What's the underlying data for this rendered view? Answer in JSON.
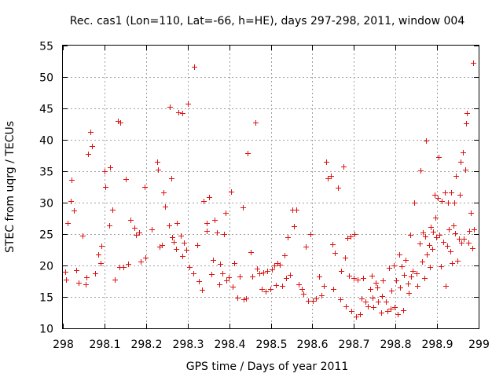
{
  "chart_data": {
    "type": "scatter",
    "title": "Rec. cas1 (Lon=110, Lat=-66, h=HE), days 297-298, 2011, window 004",
    "xlabel": "GPS time / Days of year 2011",
    "ylabel": "STEC from uqrg / TECUs",
    "xlim": [
      298,
      299
    ],
    "ylim": [
      10,
      55
    ],
    "xticks": [
      "298",
      "298.1",
      "298.2",
      "298.3",
      "298.4",
      "298.5",
      "298.6",
      "298.7",
      "298.8",
      "298.9",
      "299"
    ],
    "yticks": [
      "10",
      "15",
      "20",
      "25",
      "30",
      "35",
      "40",
      "45",
      "50",
      "55"
    ],
    "grid": true,
    "marker": "plus",
    "color": "#dd1111",
    "series": [
      {
        "name": "STEC",
        "points": [
          [
            298.005,
            19.0
          ],
          [
            298.008,
            17.8
          ],
          [
            298.012,
            26.8
          ],
          [
            298.018,
            30.2
          ],
          [
            298.02,
            33.6
          ],
          [
            298.026,
            28.7
          ],
          [
            298.033,
            19.2
          ],
          [
            298.037,
            17.3
          ],
          [
            298.048,
            24.7
          ],
          [
            298.055,
            17.0
          ],
          [
            298.057,
            18.1
          ],
          [
            298.06,
            37.8
          ],
          [
            298.066,
            41.3
          ],
          [
            298.07,
            39.0
          ],
          [
            298.078,
            18.8
          ],
          [
            298.085,
            21.8
          ],
          [
            298.09,
            20.4
          ],
          [
            298.093,
            23.1
          ],
          [
            298.101,
            35.0
          ],
          [
            298.103,
            32.5
          ],
          [
            298.112,
            26.4
          ],
          [
            298.114,
            35.6
          ],
          [
            298.12,
            28.9
          ],
          [
            298.124,
            17.7
          ],
          [
            298.133,
            43.0
          ],
          [
            298.136,
            19.7
          ],
          [
            298.138,
            42.8
          ],
          [
            298.146,
            19.8
          ],
          [
            298.151,
            33.8
          ],
          [
            298.156,
            20.3
          ],
          [
            298.163,
            27.2
          ],
          [
            298.172,
            26.0
          ],
          [
            298.176,
            24.9
          ],
          [
            298.183,
            25.3
          ],
          [
            298.188,
            20.6
          ],
          [
            298.196,
            32.5
          ],
          [
            298.199,
            21.3
          ],
          [
            298.213,
            25.7
          ],
          [
            298.226,
            36.5
          ],
          [
            298.229,
            35.2
          ],
          [
            298.233,
            23.0
          ],
          [
            298.238,
            23.2
          ],
          [
            298.242,
            31.6
          ],
          [
            298.245,
            29.4
          ],
          [
            298.256,
            26.4
          ],
          [
            298.258,
            45.2
          ],
          [
            298.261,
            33.9
          ],
          [
            298.262,
            24.5
          ],
          [
            298.267,
            23.7
          ],
          [
            298.272,
            22.6
          ],
          [
            298.275,
            26.8
          ],
          [
            298.278,
            44.4
          ],
          [
            298.283,
            24.8
          ],
          [
            298.287,
            21.5
          ],
          [
            298.288,
            44.3
          ],
          [
            298.292,
            23.6
          ],
          [
            298.296,
            22.5
          ],
          [
            298.301,
            45.8
          ],
          [
            298.305,
            19.8
          ],
          [
            298.313,
            18.8
          ],
          [
            298.316,
            51.6
          ],
          [
            298.323,
            23.3
          ],
          [
            298.327,
            17.5
          ],
          [
            298.335,
            16.1
          ],
          [
            298.339,
            30.3
          ],
          [
            298.345,
            26.8
          ],
          [
            298.346,
            25.5
          ],
          [
            298.352,
            30.9
          ],
          [
            298.357,
            18.6
          ],
          [
            298.362,
            20.9
          ],
          [
            298.365,
            27.3
          ],
          [
            298.37,
            25.2
          ],
          [
            298.376,
            17.0
          ],
          [
            298.379,
            20.2
          ],
          [
            298.383,
            18.8
          ],
          [
            298.387,
            25.0
          ],
          [
            298.392,
            28.4
          ],
          [
            298.394,
            17.6
          ],
          [
            298.399,
            18.1
          ],
          [
            298.405,
            31.8
          ],
          [
            298.409,
            16.6
          ],
          [
            298.413,
            20.4
          ],
          [
            298.419,
            14.9
          ],
          [
            298.425,
            18.2
          ],
          [
            298.432,
            29.2
          ],
          [
            298.435,
            14.6
          ],
          [
            298.441,
            14.7
          ],
          [
            298.445,
            37.9
          ],
          [
            298.451,
            22.1
          ],
          [
            298.456,
            18.2
          ],
          [
            298.463,
            42.7
          ],
          [
            298.467,
            19.5
          ],
          [
            298.472,
            18.7
          ],
          [
            298.478,
            16.2
          ],
          [
            298.482,
            18.9
          ],
          [
            298.487,
            15.9
          ],
          [
            298.492,
            19.1
          ],
          [
            298.499,
            16.3
          ],
          [
            298.503,
            19.4
          ],
          [
            298.508,
            20.0
          ],
          [
            298.512,
            16.9
          ],
          [
            298.517,
            20.4
          ],
          [
            298.521,
            20.1
          ],
          [
            298.527,
            16.8
          ],
          [
            298.533,
            21.6
          ],
          [
            298.536,
            18.0
          ],
          [
            298.541,
            24.5
          ],
          [
            298.547,
            18.5
          ],
          [
            298.552,
            28.9
          ],
          [
            298.556,
            26.2
          ],
          [
            298.562,
            28.9
          ],
          [
            298.567,
            17.0
          ],
          [
            298.575,
            16.2
          ],
          [
            298.578,
            15.5
          ],
          [
            298.584,
            23.0
          ],
          [
            298.589,
            14.4
          ],
          [
            298.596,
            25.0
          ],
          [
            298.601,
            14.4
          ],
          [
            298.608,
            14.8
          ],
          [
            298.617,
            18.2
          ],
          [
            298.622,
            15.2
          ],
          [
            298.627,
            16.7
          ],
          [
            298.633,
            36.5
          ],
          [
            298.637,
            33.9
          ],
          [
            298.645,
            34.3
          ],
          [
            298.648,
            23.4
          ],
          [
            298.651,
            16.3
          ],
          [
            298.655,
            22.0
          ],
          [
            298.662,
            32.4
          ],
          [
            298.667,
            14.6
          ],
          [
            298.67,
            19.1
          ],
          [
            298.675,
            35.8
          ],
          [
            298.678,
            21.2
          ],
          [
            298.681,
            13.5
          ],
          [
            298.685,
            24.4
          ],
          [
            298.689,
            18.4
          ],
          [
            298.692,
            24.6
          ],
          [
            298.694,
            12.8
          ],
          [
            298.699,
            18.0
          ],
          [
            298.701,
            25.0
          ],
          [
            298.705,
            11.9
          ],
          [
            298.709,
            17.8
          ],
          [
            298.715,
            12.3
          ],
          [
            298.719,
            14.8
          ],
          [
            298.723,
            18.0
          ],
          [
            298.728,
            14.3
          ],
          [
            298.734,
            13.5
          ],
          [
            298.739,
            16.3
          ],
          [
            298.742,
            18.4
          ],
          [
            298.744,
            14.9
          ],
          [
            298.747,
            13.4
          ],
          [
            298.752,
            17.3
          ],
          [
            298.756,
            16.5
          ],
          [
            298.758,
            14.3
          ],
          [
            298.765,
            12.5
          ],
          [
            298.768,
            15.1
          ],
          [
            298.77,
            17.6
          ],
          [
            298.776,
            14.2
          ],
          [
            298.78,
            12.7
          ],
          [
            298.784,
            19.6
          ],
          [
            298.789,
            13.1
          ],
          [
            298.791,
            16.0
          ],
          [
            298.795,
            20.0
          ],
          [
            298.798,
            13.4
          ],
          [
            298.802,
            17.6
          ],
          [
            298.806,
            12.3
          ],
          [
            298.809,
            21.8
          ],
          [
            298.811,
            16.5
          ],
          [
            298.815,
            19.9
          ],
          [
            298.819,
            12.9
          ],
          [
            298.821,
            18.5
          ],
          [
            298.825,
            20.9
          ],
          [
            298.829,
            17.1
          ],
          [
            298.832,
            15.6
          ],
          [
            298.835,
            24.9
          ],
          [
            298.838,
            18.3
          ],
          [
            298.841,
            19.1
          ],
          [
            298.845,
            30.0
          ],
          [
            298.85,
            18.8
          ],
          [
            298.853,
            16.8
          ],
          [
            298.858,
            23.5
          ],
          [
            298.86,
            35.1
          ],
          [
            298.863,
            20.6
          ],
          [
            298.865,
            25.2
          ],
          [
            298.869,
            18.0
          ],
          [
            298.872,
            24.6
          ],
          [
            298.874,
            39.9
          ],
          [
            298.876,
            21.7
          ],
          [
            298.88,
            23.2
          ],
          [
            298.883,
            19.7
          ],
          [
            298.885,
            26.1
          ],
          [
            298.888,
            22.6
          ],
          [
            298.891,
            25.4
          ],
          [
            298.894,
            31.2
          ],
          [
            298.896,
            27.6
          ],
          [
            298.898,
            24.5
          ],
          [
            298.901,
            30.8
          ],
          [
            298.903,
            37.3
          ],
          [
            298.906,
            24.9
          ],
          [
            298.909,
            19.9
          ],
          [
            298.912,
            30.2
          ],
          [
            298.914,
            23.7
          ],
          [
            298.918,
            31.6
          ],
          [
            298.921,
            16.8
          ],
          [
            298.925,
            23.1
          ],
          [
            298.927,
            30.0
          ],
          [
            298.929,
            25.8
          ],
          [
            298.932,
            22.2
          ],
          [
            298.934,
            31.6
          ],
          [
            298.936,
            20.4
          ],
          [
            298.939,
            26.4
          ],
          [
            298.942,
            30.0
          ],
          [
            298.944,
            25.1
          ],
          [
            298.946,
            34.3
          ],
          [
            298.949,
            20.7
          ],
          [
            298.952,
            24.3
          ],
          [
            298.955,
            31.2
          ],
          [
            298.957,
            36.5
          ],
          [
            298.959,
            23.6
          ],
          [
            298.962,
            38.0
          ],
          [
            298.964,
            24.2
          ],
          [
            298.967,
            35.3
          ],
          [
            298.97,
            42.6
          ],
          [
            298.972,
            44.3
          ],
          [
            298.975,
            23.6
          ],
          [
            298.978,
            25.5
          ],
          [
            298.981,
            28.4
          ],
          [
            298.984,
            22.8
          ],
          [
            298.986,
            52.3
          ],
          [
            298.988,
            25.8
          ]
        ]
      }
    ]
  }
}
